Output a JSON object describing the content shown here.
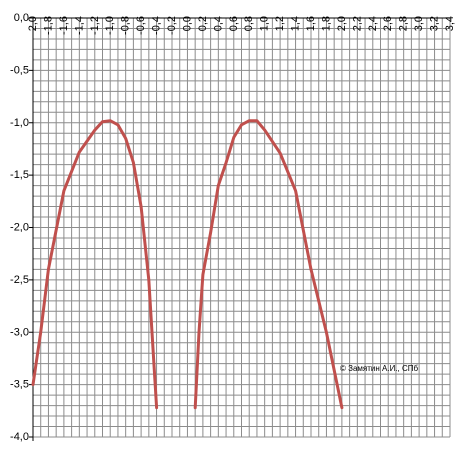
{
  "chart_data": {
    "type": "line",
    "title": "",
    "xlabel": "",
    "ylabel": "",
    "xlim": [
      -2.0,
      3.4
    ],
    "ylim": [
      -4.0,
      0.0
    ],
    "grid": true,
    "line_color": "#c0504d",
    "x_ticks": [
      "-2,0",
      "-1,8",
      "-1,6",
      "-1,4",
      "-1,2",
      "-1,0",
      "-0,8",
      "-0,6",
      "-0,4",
      "-0,2",
      "0,0",
      "0,2",
      "0,4",
      "0,6",
      "0,8",
      "1,0",
      "1,2",
      "1,4",
      "1,6",
      "1,8",
      "2,0",
      "2,2",
      "2,4",
      "2,6",
      "2,8",
      "3,0",
      "3,2",
      "3,4"
    ],
    "y_ticks": [
      "0,0",
      "-0,5",
      "-1,0",
      "-1,5",
      "-2,0",
      "-2,5",
      "-3,0",
      "-3,5",
      "-4,0"
    ],
    "series": [
      {
        "x": [
          -2.0,
          -1.9,
          -1.8,
          -1.6,
          -1.4,
          -1.2,
          -1.1,
          -1.0,
          -0.9,
          -0.8,
          -0.7,
          -0.6,
          -0.5,
          -0.4,
          -0.3
        ],
        "y": [
          -3.5,
          -3.0,
          -2.4,
          -1.65,
          -1.28,
          -1.07,
          -0.99,
          -0.98,
          -1.02,
          -1.15,
          -1.38,
          -1.8,
          -2.5,
          -3.72,
          null
        ]
      },
      {
        "x": [
          0.1,
          0.15,
          0.2,
          0.3,
          0.4,
          0.5,
          0.6,
          0.7,
          0.8,
          0.9,
          1.0,
          1.2,
          1.4,
          1.6,
          1.8,
          2.0
        ],
        "y": [
          -3.72,
          -3.0,
          -2.45,
          -2.05,
          -1.6,
          -1.38,
          -1.14,
          -1.02,
          -0.98,
          -0.98,
          -1.07,
          -1.29,
          -1.65,
          -2.4,
          -3.0,
          -3.72
        ]
      }
    ],
    "annotation": "© Замятин А.И., СПб"
  }
}
